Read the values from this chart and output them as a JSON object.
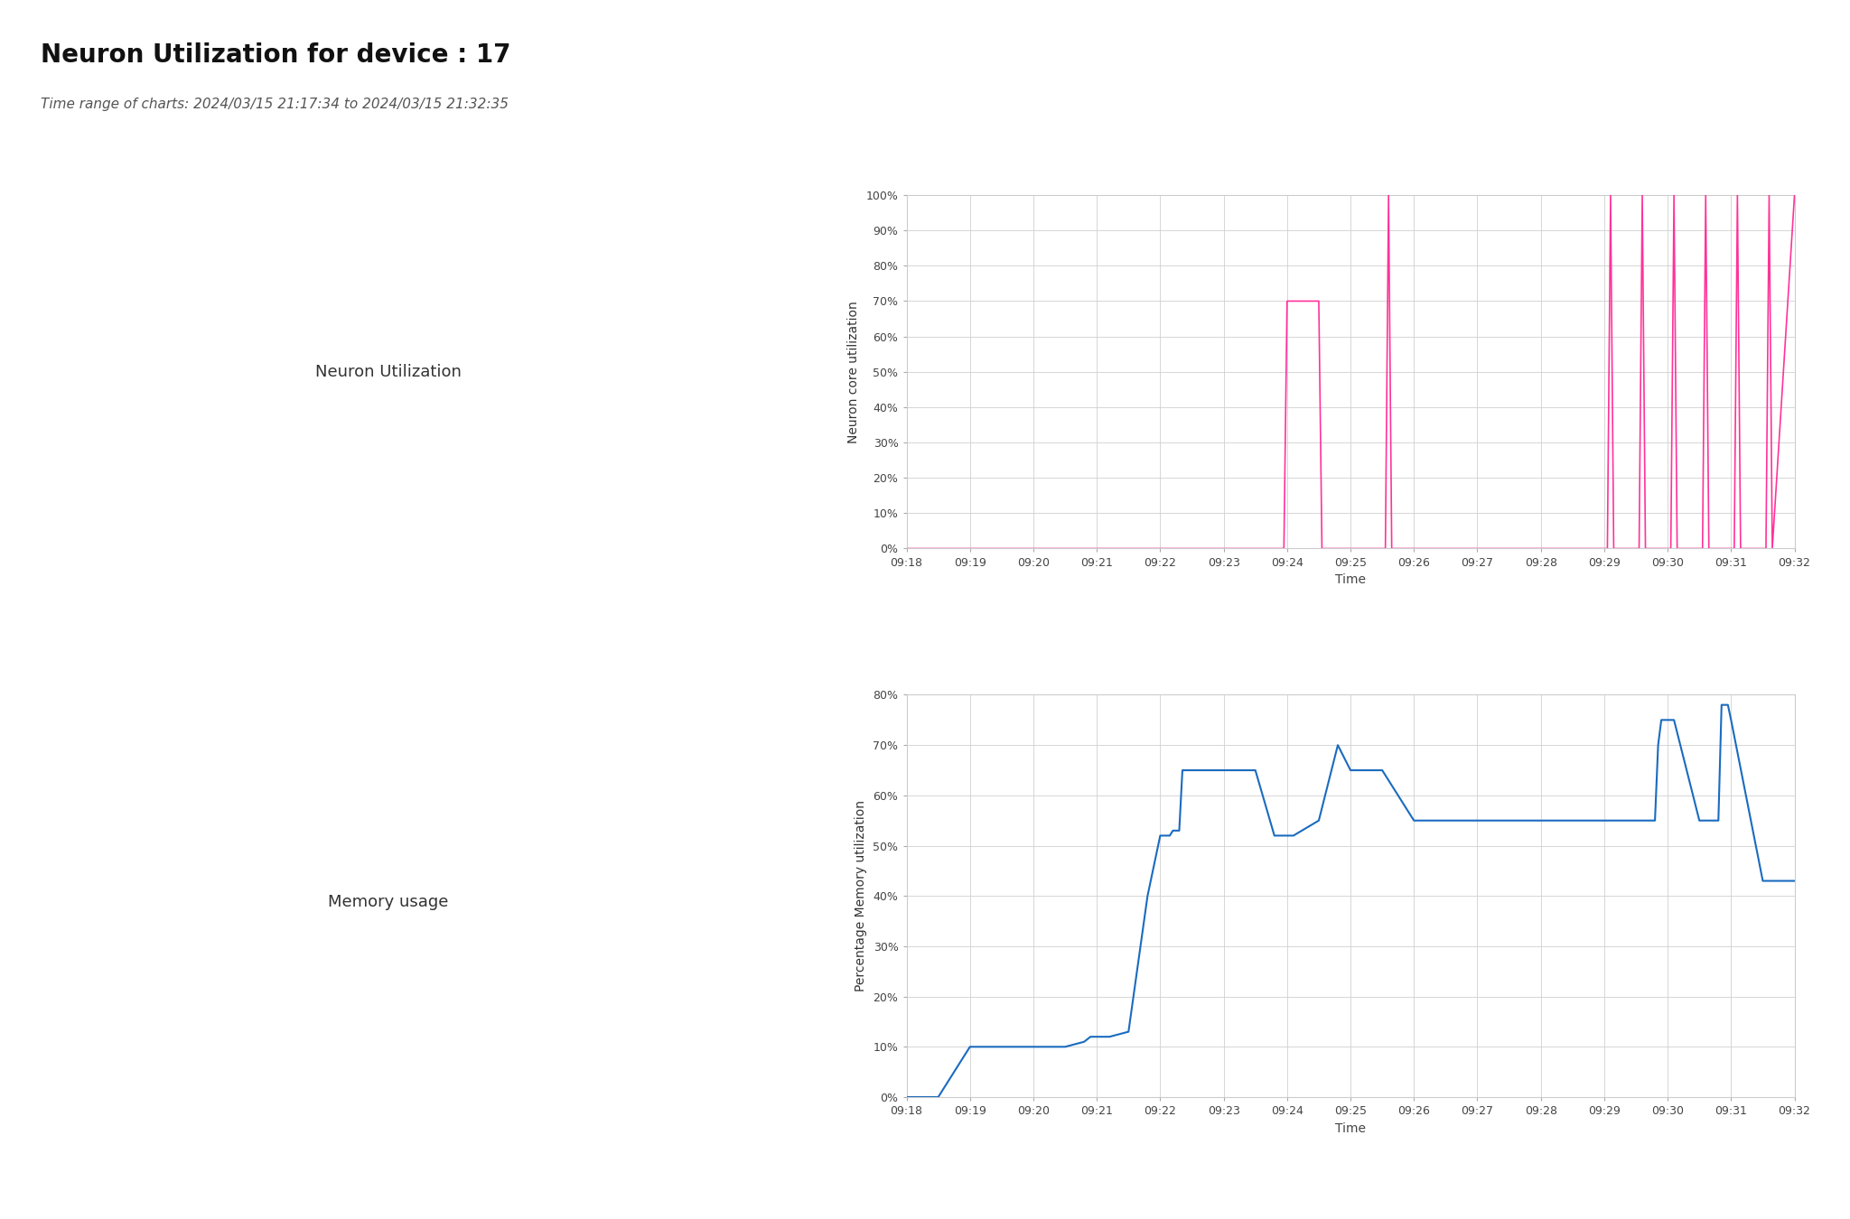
{
  "title": "Neuron Utilization for device : 17",
  "subtitle": "Time range of charts: 2024/03/15 21:17:34 to 2024/03/15 21:32:35",
  "left_label_top": "Neuron Utilization",
  "left_label_bottom": "Memory usage",
  "ylabel_top": "Neuron core utilization",
  "ylabel_bottom": "Percentage Memory utilization",
  "xlabel": "Time",
  "bg_color": "#ffffff",
  "panel_bg_color": "#f2f2f2",
  "plot_bg_color": "#ffffff",
  "line_color_top": "#FF3399",
  "line_color_bottom": "#1a6bbf",
  "x_ticks": [
    "09:18",
    "09:19",
    "09:20",
    "09:21",
    "09:22",
    "09:23",
    "09:24",
    "09:25",
    "09:26",
    "09:27",
    "09:28",
    "09:29",
    "09:30",
    "09:31",
    "09:32"
  ],
  "neuron_x": [
    0,
    0.5,
    1.0,
    1.5,
    2.0,
    2.5,
    3.0,
    3.5,
    4.0,
    4.5,
    5.0,
    5.5,
    5.95,
    6.0,
    6.5,
    6.55,
    6.6,
    6.65,
    7.0,
    7.05,
    7.1,
    7.15,
    7.5,
    7.55,
    7.6,
    7.65,
    8.0,
    8.05,
    8.1,
    8.15,
    8.5,
    8.55,
    8.6,
    8.65,
    9.0,
    9.05,
    9.1,
    9.15,
    9.5,
    9.55,
    9.6,
    9.65,
    10.0,
    10.05,
    10.1,
    10.15,
    10.5,
    10.55,
    10.6,
    10.65,
    11.0,
    11.05,
    11.1,
    11.15,
    11.5,
    11.55,
    11.6,
    11.65,
    12.0,
    12.05,
    12.1,
    12.15,
    12.5,
    12.55,
    12.6,
    12.65,
    13.0,
    13.05,
    13.1,
    13.15,
    13.5,
    13.55,
    13.6,
    13.65,
    14.0
  ],
  "neuron_y": [
    0,
    0,
    0,
    0,
    0,
    0,
    0,
    0,
    0,
    0,
    0,
    0,
    0,
    70,
    70,
    0,
    0,
    0,
    0,
    0,
    0,
    0,
    0,
    0,
    100,
    0,
    0,
    0,
    0,
    0,
    0,
    0,
    0,
    0,
    0,
    0,
    0,
    0,
    0,
    0,
    0,
    0,
    0,
    0,
    0,
    0,
    0,
    0,
    0,
    0,
    0,
    0,
    100,
    0,
    0,
    0,
    100,
    0,
    0,
    0,
    100,
    0,
    0,
    0,
    100,
    0,
    0,
    0,
    100,
    0,
    0,
    0,
    100,
    0,
    100
  ],
  "memory_x": [
    0,
    0.5,
    1.0,
    1.5,
    1.8,
    2.0,
    2.2,
    2.5,
    2.8,
    2.9,
    3.0,
    3.1,
    3.2,
    3.5,
    3.8,
    4.0,
    4.1,
    4.15,
    4.2,
    4.3,
    4.35,
    4.4,
    4.5,
    4.6,
    4.65,
    4.7,
    4.8,
    5.0,
    5.5,
    5.8,
    5.85,
    5.9,
    5.95,
    6.0,
    6.1,
    6.5,
    6.8,
    7.0,
    7.5,
    8.0,
    8.5,
    8.8,
    8.85,
    8.9,
    8.95,
    9.0,
    9.1,
    9.5,
    10.0,
    10.5,
    11.0,
    11.5,
    11.8,
    11.85,
    11.9,
    11.95,
    12.0,
    12.1,
    12.5,
    12.8,
    12.85,
    12.9,
    12.95,
    13.0,
    13.5,
    14.0
  ],
  "memory_y": [
    0,
    0,
    10,
    10,
    10,
    10,
    10,
    10,
    11,
    12,
    12,
    12,
    12,
    13,
    40,
    52,
    52,
    52,
    53,
    53,
    65,
    65,
    65,
    65,
    65,
    65,
    65,
    65,
    65,
    52,
    52,
    52,
    52,
    52,
    52,
    55,
    70,
    65,
    65,
    55,
    55,
    55,
    55,
    55,
    55,
    55,
    55,
    55,
    55,
    55,
    55,
    55,
    55,
    70,
    75,
    75,
    75,
    75,
    55,
    55,
    78,
    78,
    78,
    75,
    43,
    43
  ]
}
